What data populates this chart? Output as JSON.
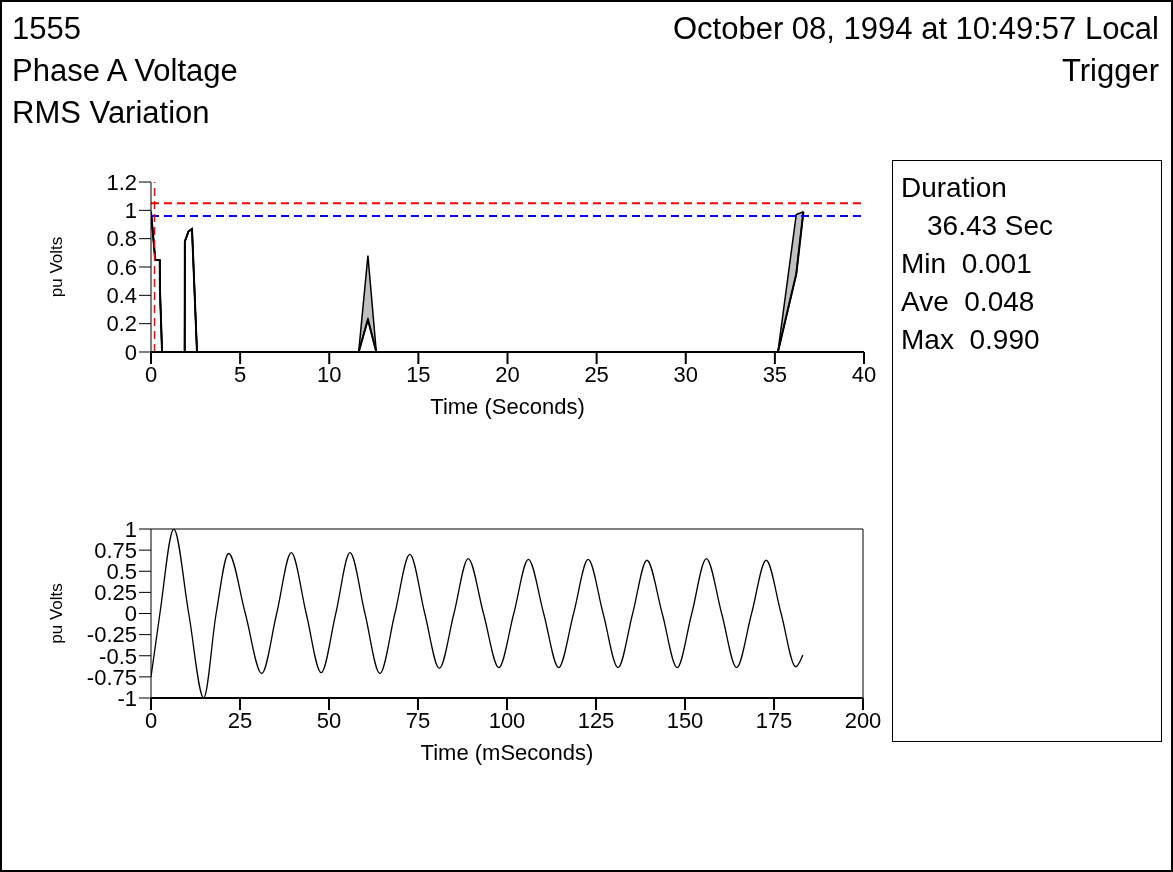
{
  "chart_data": [
    {
      "type": "line",
      "annotations": [
        "1555",
        "October 08, 1994 at 10:49:57 Local",
        "Phase A Voltage",
        "Trigger",
        "RMS Variation",
        "Duration",
        "36.43 Sec",
        "Min  0.001",
        "Ave  0.048",
        "Max  0.990"
      ],
      "xlabel": "Time (Seconds)",
      "ylabel": "pu Volts",
      "xlim": [
        0,
        40
      ],
      "xticks": [
        0,
        5,
        10,
        15,
        20,
        25,
        30,
        35,
        40
      ],
      "ylim": [
        0,
        1.2
      ],
      "yticks": [
        0,
        0.2,
        0.4,
        0.6,
        0.8,
        1,
        1.2
      ],
      "marker": "none",
      "line_style": "solid",
      "series": [
        {
          "color": "#000000",
          "x": [
            0,
            0.24,
            0.49,
            0.5,
            0.62,
            1.89,
            1.9,
            2.1,
            2.3,
            2.58,
            11.65,
            12.17,
            12.64,
            35.17,
            36.2,
            36.6
          ],
          "values": [
            0.99,
            0.65,
            0.65,
            0.45,
            0,
            0,
            0.78,
            0.85,
            0.87,
            0,
            0,
            0.23,
            0,
            0,
            0.55,
            0.99
          ],
          "lower": [
            0.99,
            0.65,
            0.65,
            0.45,
            0,
            0,
            0.78,
            0.85,
            0.87,
            0,
            0,
            0.23,
            0,
            0,
            0.55,
            0.99
          ],
          "upper": [
            0.99,
            0.65,
            0.65,
            0.45,
            0,
            0,
            0.78,
            0.85,
            0.87,
            0,
            0,
            0.68,
            0,
            0,
            0.97,
            0.99
          ]
        }
      ],
      "ref_lines": [
        {
          "axis": "y",
          "value": 1.05,
          "color": "#ff0000",
          "line_style": "dashed"
        },
        {
          "axis": "y",
          "value": 0.96,
          "color": "#0000ff",
          "line_style": "dashed"
        },
        {
          "axis": "x",
          "value": 0.2,
          "color": "#ff0000",
          "line_style": "dashed"
        }
      ]
    },
    {
      "type": "line",
      "xlabel": "Time (mSeconds)",
      "ylabel": "pu Volts",
      "xlim": [
        0,
        200
      ],
      "xticks": [
        0,
        25,
        50,
        75,
        100,
        125,
        150,
        175,
        200
      ],
      "ylim": [
        -1,
        1
      ],
      "yticks": [
        1,
        0.75,
        0.5,
        0.25,
        0,
        -0.25,
        -0.5,
        -0.75,
        -1
      ],
      "marker": "none",
      "line_style": "solid",
      "series": [
        {
          "color": "#000000",
          "x": [
            0,
            2.5,
            6.4,
            10.6,
            14.8,
            18.3,
            21.8,
            26.5,
            31.1,
            35.3,
            39.4,
            43.6,
            47.8,
            51.9,
            55.9,
            60.1,
            64.3,
            68.5,
            72.7,
            76.9,
            81.0,
            85.1,
            89.1,
            93.4,
            97.7,
            101.9,
            106.0,
            110.3,
            114.5,
            118.7,
            122.8,
            127.0,
            131.2,
            135.3,
            139.3,
            143.6,
            147.8,
            151.9,
            156.0,
            160.3,
            164.5,
            168.7,
            172.8,
            177.0,
            181.1,
            183.1
          ],
          "values": [
            -0.75,
            0,
            1,
            0,
            -1,
            0,
            0.71,
            0,
            -0.71,
            0,
            0.72,
            0,
            -0.7,
            0,
            0.72,
            0,
            -0.71,
            0,
            0.7,
            0,
            -0.65,
            0,
            0.65,
            0,
            -0.64,
            0,
            0.64,
            0,
            -0.64,
            0,
            0.64,
            0,
            -0.64,
            0,
            0.63,
            0,
            -0.64,
            0,
            0.65,
            0,
            -0.64,
            0,
            0.63,
            0,
            -0.63,
            -0.49
          ]
        }
      ]
    }
  ]
}
